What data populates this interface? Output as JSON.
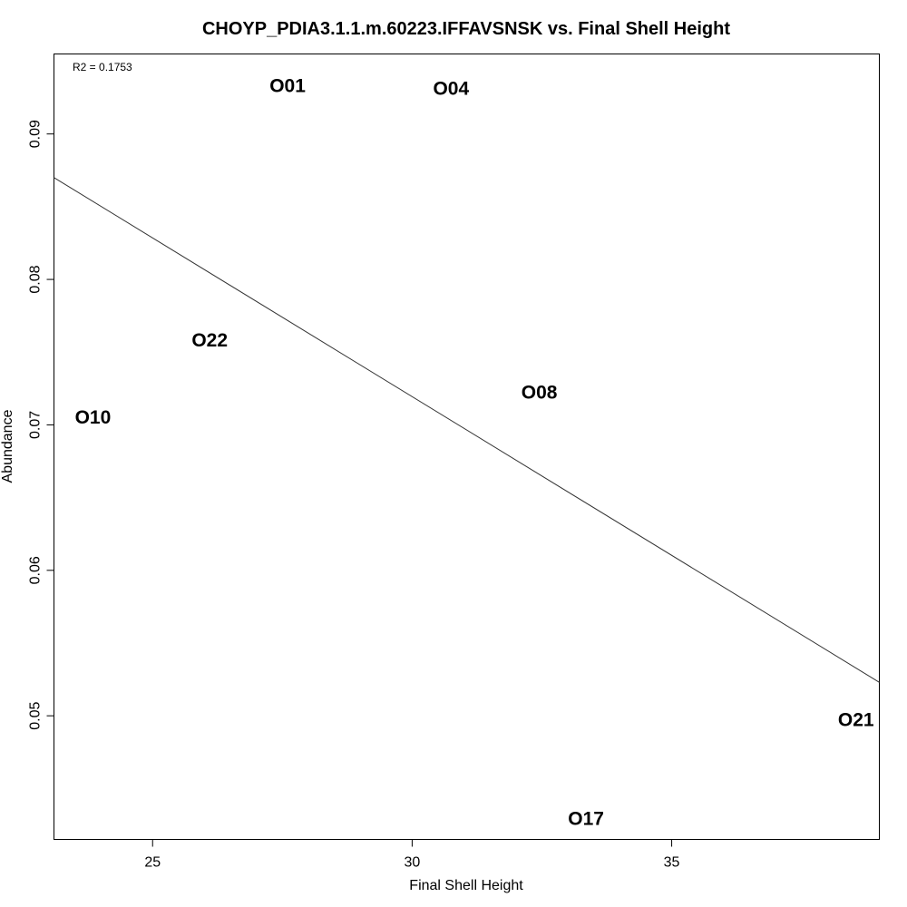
{
  "chart_data": {
    "type": "scatter",
    "title": "CHOYP_PDIA3.1.1.m.60223.IFFAVSNSK vs. Final Shell Height",
    "xlabel": "Final Shell Height",
    "ylabel": "Abundance",
    "annotation": "R2 = 0.1753",
    "xlim": [
      23.1,
      39.0
    ],
    "ylim": [
      0.0415,
      0.0955
    ],
    "xticks": [
      25,
      30,
      35
    ],
    "yticks": [
      0.05,
      0.06,
      0.07,
      0.08,
      0.09
    ],
    "xtick_labels": [
      "25",
      "30",
      "35"
    ],
    "ytick_labels": [
      "0.05",
      "0.06",
      "0.07",
      "0.08",
      "0.09"
    ],
    "points": [
      {
        "label": "O01",
        "x": 27.6,
        "y": 0.0933
      },
      {
        "label": "O04",
        "x": 30.75,
        "y": 0.0931
      },
      {
        "label": "O22",
        "x": 26.1,
        "y": 0.0758
      },
      {
        "label": "O08",
        "x": 32.45,
        "y": 0.0722
      },
      {
        "label": "O10",
        "x": 23.85,
        "y": 0.0705
      },
      {
        "label": "O21",
        "x": 38.55,
        "y": 0.0497
      },
      {
        "label": "O17",
        "x": 33.35,
        "y": 0.0429
      }
    ],
    "regression": {
      "x": [
        23.1,
        39.0
      ],
      "y": [
        0.087,
        0.0523
      ]
    },
    "grid": false,
    "legend": "none"
  }
}
